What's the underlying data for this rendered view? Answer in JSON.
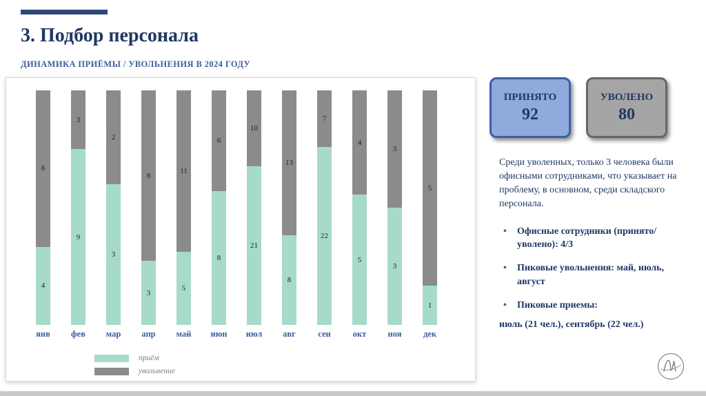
{
  "header": {
    "title": "3. Подбор персонала",
    "subtitle": "ДИНАМИКА ПРИЁМЫ / УВОЛЬНЕНИЯ В 2024 ГОДУ"
  },
  "chart_data": {
    "type": "bar",
    "stacked": true,
    "normalized": true,
    "title": "Динамика приёмы / увольнения в 2024 году",
    "categories": [
      "янв",
      "фев",
      "мар",
      "апр",
      "май",
      "июн",
      "июл",
      "авг",
      "сен",
      "окт",
      "ноя",
      "дек"
    ],
    "series": [
      {
        "name": "приём",
        "color": "#A6DBCB",
        "values": [
          4,
          9,
          3,
          3,
          5,
          8,
          21,
          8,
          22,
          5,
          3,
          1
        ]
      },
      {
        "name": "увольнение",
        "color": "#8B8B8B",
        "values": [
          8,
          3,
          2,
          8,
          11,
          6,
          10,
          13,
          7,
          4,
          3,
          5
        ]
      }
    ],
    "totals": {
      "hired": 92,
      "dismissed": 80
    },
    "legend_position": "bottom-left",
    "grid": false,
    "data_labels": "inside-center"
  },
  "badges": [
    {
      "label": "ПРИНЯТО",
      "value": "92",
      "fill": "#8FAADC",
      "border": "#3D5DA8"
    },
    {
      "label": "УВОЛЕНО",
      "value": "80",
      "fill": "#A5A5A5",
      "border": "#666666"
    }
  ],
  "notes": {
    "paragraph": "Среди уволенных, только 3 человека были офисными сотрудниками, что указывает на проблему, в основном, среди складского персонала.",
    "bullets": [
      "Офисные сотрудники (принято/уволено): 4/3",
      "Пиковые увольнения: май, июль, август",
      "Пиковые приемы:"
    ],
    "peaks_detail": "июль (21 чел.), сентябрь (22 чел.)"
  },
  "colors": {
    "accent_navy": "#1F3864",
    "label_blue": "#3D5C9E",
    "hire_teal": "#A6DBCB",
    "fire_gray": "#8B8B8B"
  }
}
